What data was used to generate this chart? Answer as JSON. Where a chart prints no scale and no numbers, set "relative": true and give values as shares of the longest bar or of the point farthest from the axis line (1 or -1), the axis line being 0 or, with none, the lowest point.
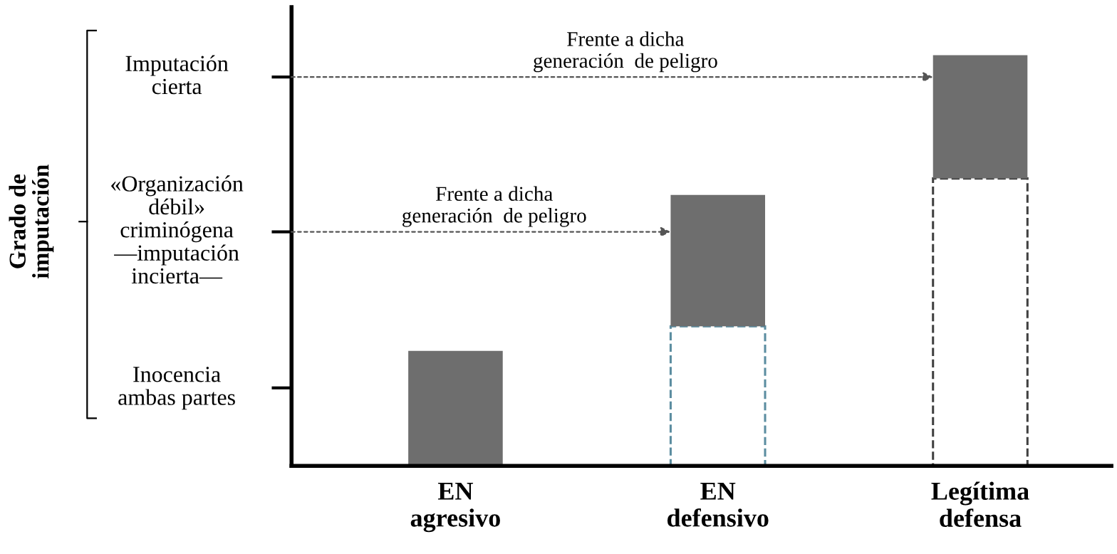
{
  "chart_data": {
    "type": "bar",
    "stacked": true,
    "relative": true,
    "categories": [
      "EN\nagresivo",
      "EN\ndefensivo",
      "Legítima\ndefensa"
    ],
    "series": [
      {
        "color": "#555555",
        "line_style": "dashed",
        "colors": [
          "#555555",
          "#5b8da0",
          "#404040"
        ],
        "values": [
          null,
          0.34,
          0.7
        ]
      },
      {
        "color": "#6e6e6e",
        "line_style": "solid",
        "values": [
          0.28,
          0.32,
          0.3
        ]
      }
    ],
    "annotations": [
      "Grado de\nimputación",
      "Inocencia\nambas partes",
      "«Organización\ndébil»\ncriminógena\n—imputación\nincierta—",
      "Imputación\ncierta",
      "Frente a dicha\ngeneración  de peligro",
      "Frente a dicha\ngeneración  de peligro"
    ],
    "grid": false,
    "legend": false
  }
}
